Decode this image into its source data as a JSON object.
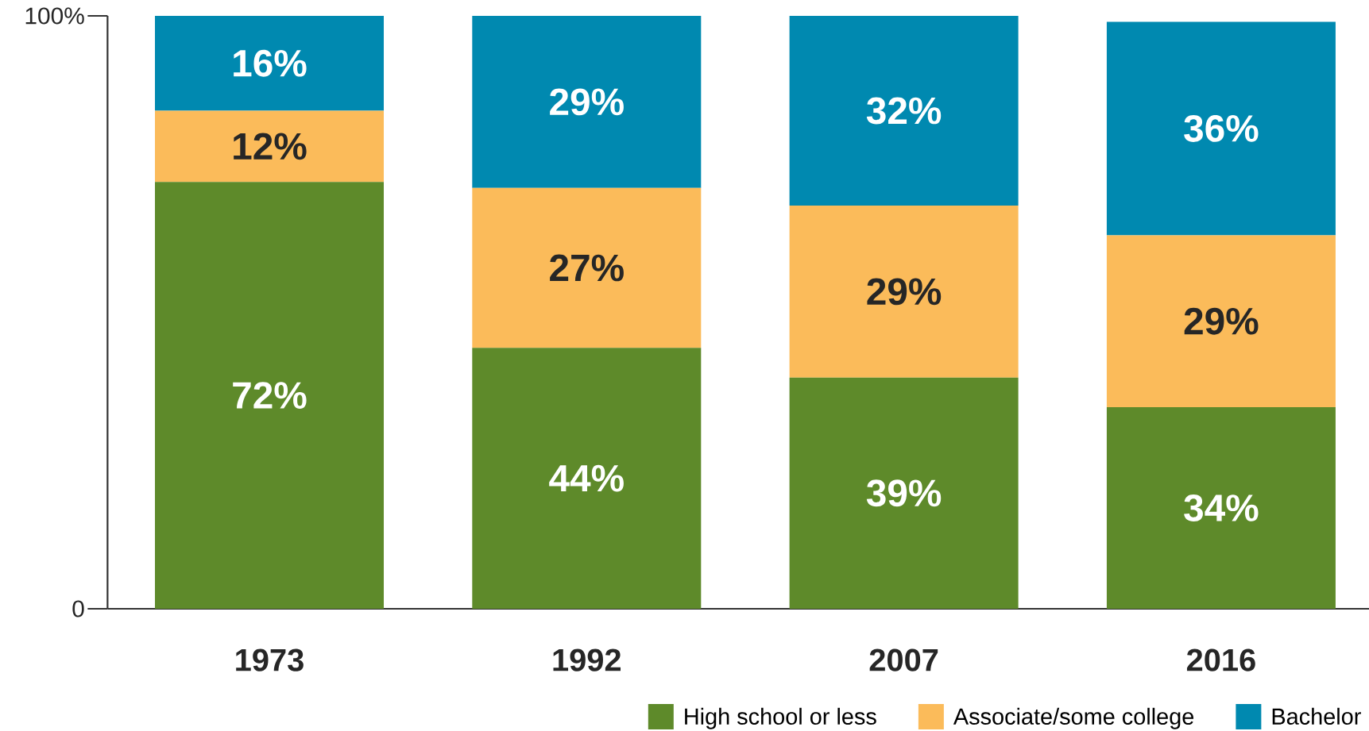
{
  "chart_data": {
    "type": "bar",
    "stacked": true,
    "categories": [
      "1973",
      "1992",
      "2007",
      "2016"
    ],
    "series": [
      {
        "name": "High school or less",
        "color": "#5e8a2a",
        "values": [
          72,
          44,
          39,
          34
        ],
        "value_labels": [
          "72%",
          "44%",
          "39%",
          "34%"
        ]
      },
      {
        "name": "Associate/some college",
        "color": "#fbbb5a",
        "values": [
          12,
          27,
          29,
          29
        ],
        "value_labels": [
          "12%",
          "27%",
          "29%",
          "29%"
        ]
      },
      {
        "name": "Bachelor",
        "color": "#0089b0",
        "values": [
          16,
          29,
          32,
          36
        ],
        "value_labels": [
          "16%",
          "29%",
          "32%",
          "36%"
        ]
      }
    ],
    "ylim": [
      0,
      100
    ],
    "yticks": [
      0,
      {
        "value": 100,
        "label": "100%"
      }
    ],
    "legend": "bottom right"
  }
}
